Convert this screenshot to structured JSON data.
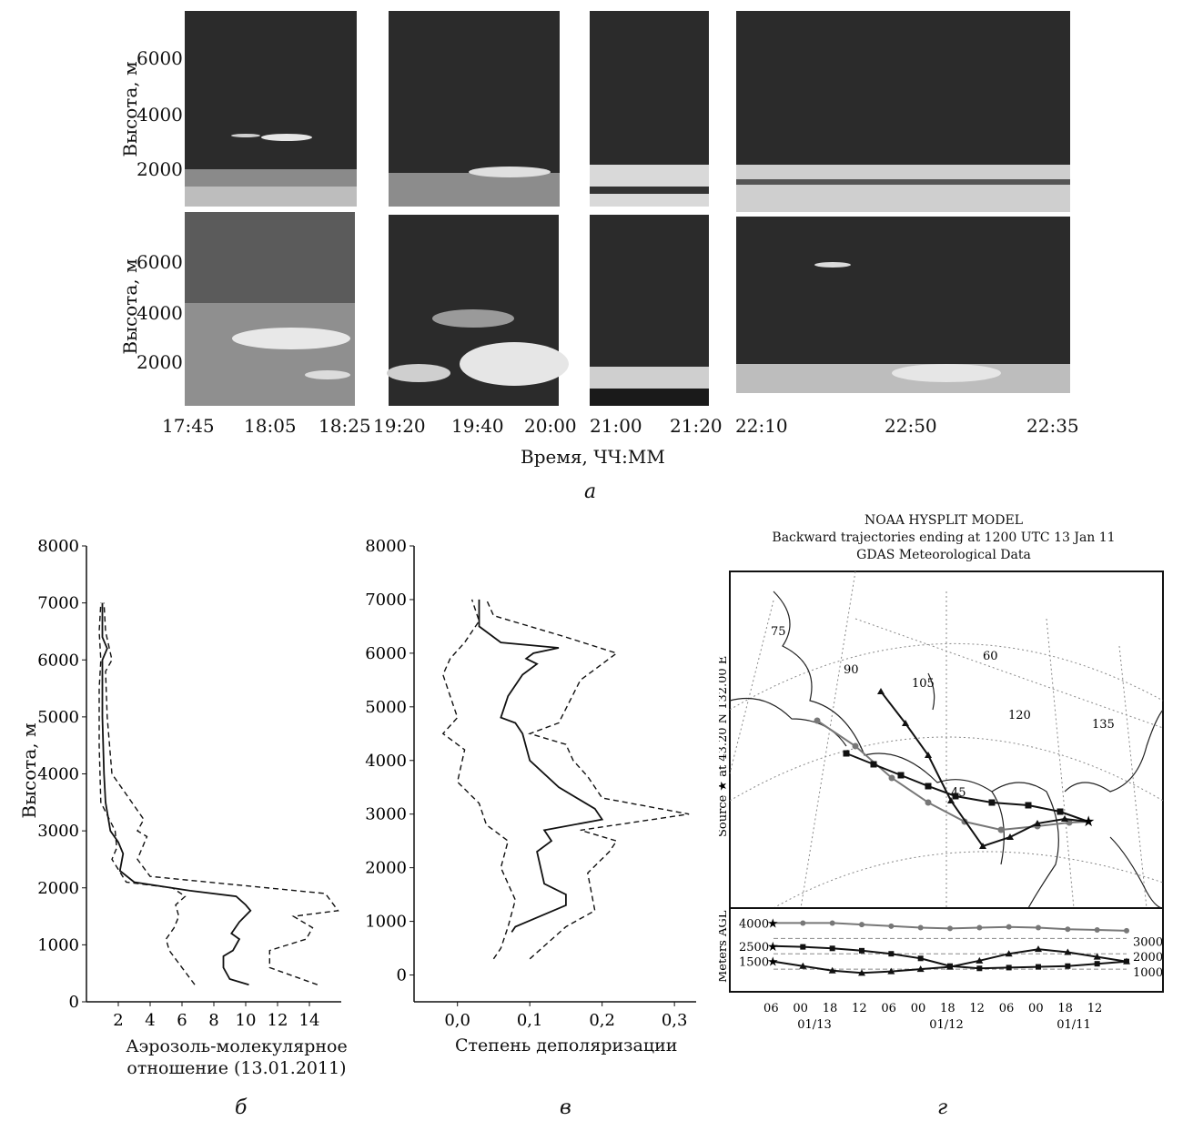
{
  "panel_letters": [
    "а",
    "б",
    "в",
    "г"
  ],
  "panel_a": {
    "y_label": "Высота, м",
    "x_label": "Время, ЧЧ:ММ",
    "y_ticks": [
      "6000",
      "4000",
      "2000"
    ],
    "time_ticks": [
      "17:45",
      "18:05",
      "18:25",
      "19:20",
      "19:40",
      "20:00",
      "21:00",
      "21:20",
      "22:10",
      "22:50",
      "22:35"
    ],
    "rows": [
      "top",
      "bottom"
    ],
    "colors": {
      "dark": "#2b2b2b",
      "cloud": "#e6e6e6",
      "gray": "#8c8c8c"
    }
  },
  "panel_hysplit": {
    "title_lines": [
      "NOAA HYSPLIT MODEL",
      "Backward trajectories ending at 1200 UTC 13 Jan 11",
      "GDAS Meteorological Data"
    ],
    "source_label": "Source ★ at 43.20 N 132.00 E",
    "map_labels": [
      "75",
      "90",
      "60",
      "105",
      "120",
      "135",
      "45"
    ],
    "agl_axis_label": "Meters AGL",
    "agl_left_ticks": [
      "4000",
      "2500",
      "1500"
    ],
    "agl_right_ticks": [
      "3000",
      "2000",
      "1000"
    ],
    "time_ticks": [
      "06",
      "00",
      "18",
      "12",
      "06",
      "00",
      "18",
      "12",
      "06",
      "00",
      "18",
      "12"
    ],
    "date_ticks": [
      "01/13",
      "01/12",
      "01/11"
    ]
  },
  "chart_data": [
    {
      "type": "line",
      "panel": "б",
      "xlabel": "Аэрозоль-молекулярное отношение (13.01.2011)",
      "ylabel": "Высота, м",
      "xlim": [
        0,
        16
      ],
      "ylim": [
        0,
        8000
      ],
      "x_ticks": [
        "2",
        "4",
        "6",
        "8",
        "10",
        "12",
        "14"
      ],
      "y_ticks": [
        "0",
        "1000",
        "2000",
        "3000",
        "4000",
        "5000",
        "6000",
        "7000",
        "8000"
      ],
      "series": [
        {
          "style": "solid",
          "x": [
            10.2,
            9.0,
            8.6,
            8.6,
            9.2,
            9.6,
            9.1,
            9.6,
            10.3,
            10.0,
            9.4,
            6.5,
            3.0,
            2.1,
            2.3,
            2.0,
            1.5,
            1.2,
            1.1,
            1.0,
            1.0,
            1.3,
            1.0,
            1.0,
            1.0
          ],
          "y": [
            300,
            400,
            600,
            800,
            900,
            1100,
            1200,
            1400,
            1600,
            1700,
            1850,
            1950,
            2100,
            2300,
            2600,
            2800,
            3000,
            3500,
            4000,
            5000,
            6000,
            6200,
            6400,
            6800,
            7000
          ]
        },
        {
          "style": "dashed",
          "x": [
            6.8,
            6.0,
            5.2,
            5.0,
            5.5,
            5.8,
            5.6,
            6.2,
            5.4,
            2.5,
            1.6,
            1.9,
            1.8,
            0.9,
            0.8,
            0.8,
            0.9,
            0.8,
            0.9
          ],
          "y": [
            300,
            600,
            900,
            1100,
            1300,
            1500,
            1700,
            1850,
            2000,
            2100,
            2500,
            2700,
            3000,
            3500,
            4500,
            5500,
            6000,
            6500,
            7000
          ]
        },
        {
          "style": "dashed",
          "x": [
            14.5,
            11.5,
            11.5,
            13.8,
            14.2,
            13.0,
            15.8,
            15.0,
            4.0,
            3.2,
            3.8,
            3.2,
            3.6,
            1.6,
            1.3,
            1.2,
            1.6,
            1.2,
            1.1
          ],
          "y": [
            300,
            600,
            900,
            1100,
            1300,
            1500,
            1600,
            1900,
            2200,
            2500,
            2900,
            3000,
            3200,
            4000,
            5000,
            5800,
            6000,
            6500,
            7000
          ]
        }
      ]
    },
    {
      "type": "line",
      "panel": "в",
      "xlabel": "Степень деполяризации",
      "xlim": [
        -0.06,
        0.33
      ],
      "ylim": [
        -500,
        8000
      ],
      "x_ticks": [
        "0,0",
        "0,1",
        "0,2",
        "0,3"
      ],
      "y_ticks": [
        "0",
        "1000",
        "2000",
        "3000",
        "4000",
        "5000",
        "6000",
        "7000",
        "8000"
      ],
      "series": [
        {
          "style": "solid",
          "x": [
            0.075,
            0.08,
            0.15,
            0.15,
            0.12,
            0.11,
            0.13,
            0.12,
            0.2,
            0.19,
            0.14,
            0.1,
            0.09,
            0.08,
            0.06,
            0.07,
            0.09,
            0.11,
            0.095,
            0.105,
            0.14,
            0.06,
            0.03,
            0.03
          ],
          "y": [
            800,
            900,
            1300,
            1500,
            1700,
            2300,
            2500,
            2700,
            2900,
            3100,
            3500,
            4000,
            4500,
            4700,
            4800,
            5200,
            5600,
            5800,
            5900,
            6000,
            6100,
            6200,
            6500,
            7000
          ]
        },
        {
          "style": "dashed",
          "x": [
            0.05,
            0.06,
            0.07,
            0.08,
            0.06,
            0.07,
            0.04,
            0.03,
            0.0,
            0.01,
            -0.02,
            0.0,
            -0.01,
            -0.02,
            -0.01,
            0.01,
            0.03,
            0.02
          ],
          "y": [
            300,
            500,
            900,
            1400,
            2000,
            2500,
            2800,
            3200,
            3600,
            4200,
            4500,
            4800,
            5200,
            5600,
            5900,
            6200,
            6600,
            7000
          ]
        },
        {
          "style": "dashed",
          "x": [
            0.1,
            0.15,
            0.19,
            0.18,
            0.21,
            0.22,
            0.17,
            0.32,
            0.2,
            0.18,
            0.16,
            0.15,
            0.1,
            0.14,
            0.17,
            0.2,
            0.22,
            0.15,
            0.05,
            0.04
          ],
          "y": [
            300,
            900,
            1200,
            1900,
            2300,
            2500,
            2700,
            3000,
            3300,
            3700,
            4000,
            4300,
            4500,
            4700,
            5500,
            5800,
            6000,
            6300,
            6700,
            7000
          ]
        }
      ]
    },
    {
      "type": "line",
      "panel": "г",
      "title": "Meters AGL",
      "x": [
        "06",
        "00",
        "18",
        "12",
        "06",
        "00",
        "18",
        "12",
        "06",
        "00",
        "18",
        "12"
      ],
      "y_ticks_left": [
        "4000",
        "2500",
        "1500"
      ],
      "y_ticks_right": [
        "3000",
        "2000",
        "1000"
      ],
      "ylim": [
        0,
        4500
      ],
      "series": [
        {
          "marker": "circle",
          "color": "#777777",
          "x": [
            0,
            1,
            2,
            3,
            4,
            5,
            6,
            7,
            8,
            9,
            10,
            11,
            12
          ],
          "y": [
            4000,
            4000,
            4000,
            3900,
            3800,
            3700,
            3650,
            3700,
            3750,
            3700,
            3600,
            3550,
            3500
          ]
        },
        {
          "marker": "square",
          "color": "#111111",
          "x": [
            0,
            1,
            2,
            3,
            4,
            5,
            6,
            7,
            8,
            9,
            10,
            11,
            12
          ],
          "y": [
            2500,
            2450,
            2350,
            2200,
            2000,
            1700,
            1200,
            1050,
            1100,
            1150,
            1200,
            1350,
            1500
          ]
        },
        {
          "marker": "triangle",
          "color": "#111111",
          "x": [
            0,
            1,
            2,
            3,
            4,
            5,
            6,
            7,
            8,
            9,
            10,
            11,
            12
          ],
          "y": [
            1500,
            1200,
            900,
            750,
            850,
            1000,
            1150,
            1550,
            2000,
            2300,
            2100,
            1800,
            1500
          ]
        }
      ]
    }
  ]
}
